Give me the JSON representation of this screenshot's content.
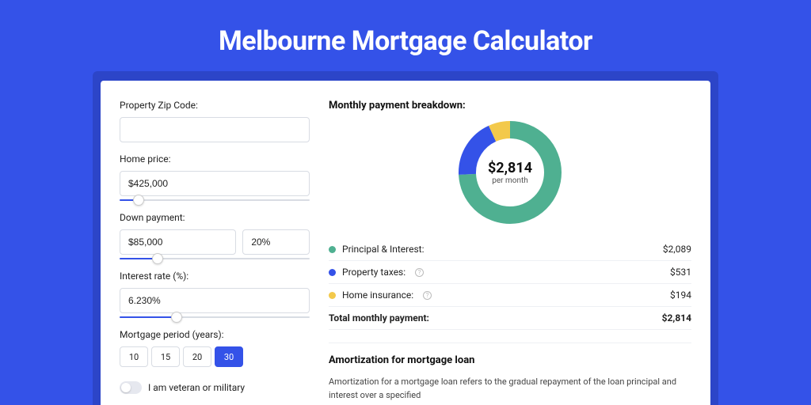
{
  "title": "Melbourne Mortgage Calculator",
  "colors": {
    "page_bg": "#3452e8",
    "card_shadow": "#2c45c8",
    "card_bg": "#ffffff",
    "accent": "#3452e8",
    "border": "#d8dce3"
  },
  "form": {
    "zip": {
      "label": "Property Zip Code:",
      "value": ""
    },
    "home_price": {
      "label": "Home price:",
      "value": "$425,000",
      "slider_pct": 10
    },
    "down_payment": {
      "label": "Down payment:",
      "value": "$85,000",
      "pct_value": "20%",
      "slider_pct": 20
    },
    "interest_rate": {
      "label": "Interest rate (%):",
      "value": "6.230%",
      "slider_pct": 30
    },
    "mortgage_period": {
      "label": "Mortgage period (years):",
      "options": [
        "10",
        "15",
        "20",
        "30"
      ],
      "selected": "30"
    },
    "veteran": {
      "label": "I am veteran or military",
      "checked": false
    }
  },
  "breakdown": {
    "title": "Monthly payment breakdown:",
    "donut": {
      "type": "donut",
      "amount": "$2,814",
      "sub": "per month",
      "size": 130,
      "stroke_width": 22,
      "background": "#ffffff",
      "slices": [
        {
          "label": "Principal & Interest",
          "value": 2089,
          "color": "#4fb091",
          "pct": 74.2
        },
        {
          "label": "Property taxes",
          "value": 531,
          "color": "#3452e8",
          "pct": 18.9
        },
        {
          "label": "Home insurance",
          "value": 194,
          "color": "#f3c94b",
          "pct": 6.9
        }
      ]
    },
    "rows": [
      {
        "dot": "#4fb091",
        "label": "Principal & Interest:",
        "info": false,
        "amount": "$2,089"
      },
      {
        "dot": "#3452e8",
        "label": "Property taxes:",
        "info": true,
        "amount": "$531"
      },
      {
        "dot": "#f3c94b",
        "label": "Home insurance:",
        "info": true,
        "amount": "$194"
      }
    ],
    "total": {
      "label": "Total monthly payment:",
      "amount": "$2,814"
    }
  },
  "amortization": {
    "title": "Amortization for mortgage loan",
    "text": "Amortization for a mortgage loan refers to the gradual repayment of the loan principal and interest over a specified"
  }
}
